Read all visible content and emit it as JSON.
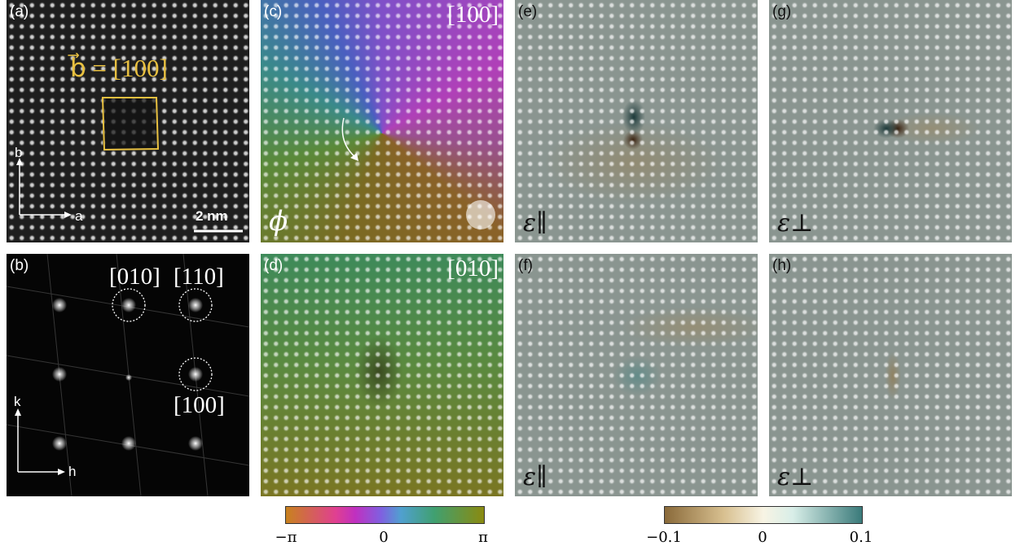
{
  "panels": {
    "a": {
      "label": "(a)",
      "burgers": "b⃗ = [100]",
      "axis_vertical": "b",
      "axis_horizontal": "a",
      "scale_bar": "2 nm"
    },
    "b": {
      "label": "(b)",
      "spots": [
        "[010]",
        "[110]",
        "[100]"
      ],
      "axis_vertical": "k",
      "axis_horizontal": "h"
    },
    "c": {
      "label": "(c)",
      "reflection": "[100]",
      "symbol": "ϕ"
    },
    "d": {
      "label": "(d)",
      "reflection": "[010]"
    },
    "e": {
      "label": "(e)",
      "symbol": "ε∥"
    },
    "f": {
      "label": "(f)",
      "symbol": "ε∥"
    },
    "g": {
      "label": "(g)",
      "symbol": "ε⊥"
    },
    "h": {
      "label": "(h)",
      "symbol": "ε⊥"
    }
  },
  "colorbars": [
    {
      "ticks": [
        "−π",
        "0",
        "π"
      ]
    },
    {
      "ticks": [
        "−0.1",
        "0",
        "0.1"
      ]
    }
  ]
}
